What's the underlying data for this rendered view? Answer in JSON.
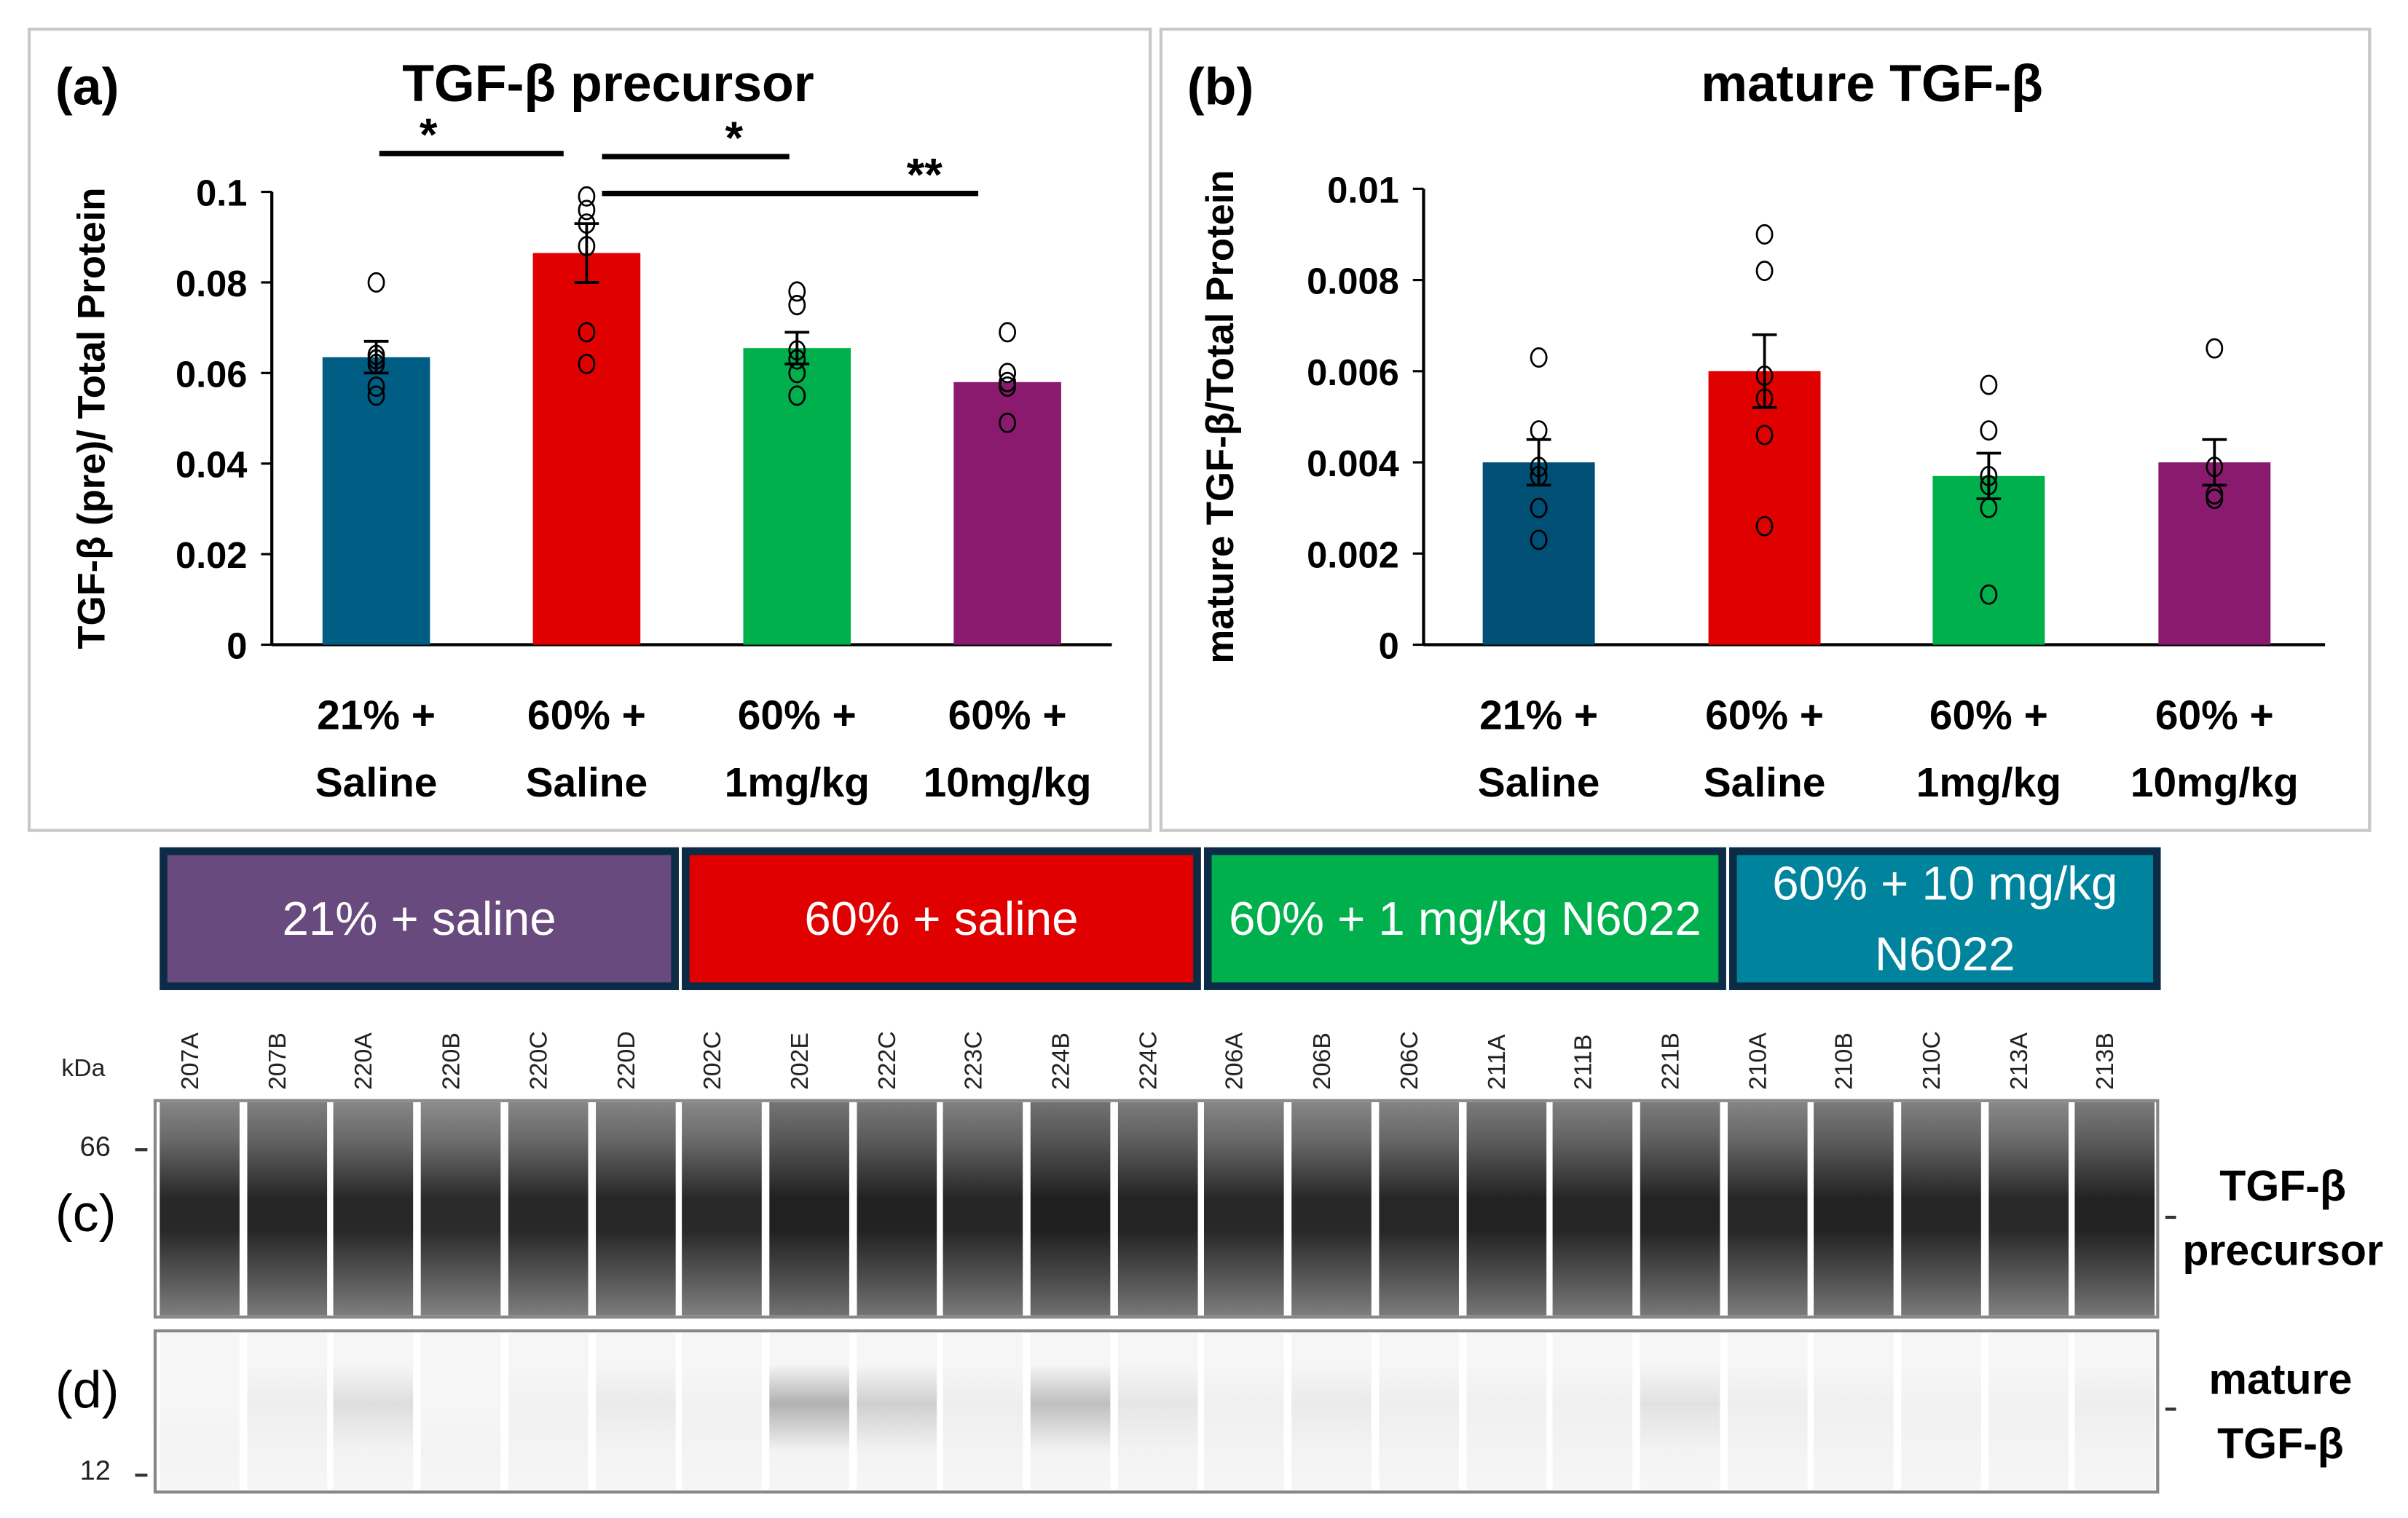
{
  "chart_data": [
    {
      "type": "bar",
      "panel_label": "(a)",
      "title": "TGF-β precursor",
      "ylabel": "TGF-β (pre)/ Total Protein",
      "xlabel": "",
      "categories": [
        [
          "21% +",
          "Saline"
        ],
        [
          "60% +",
          "Saline"
        ],
        [
          "60% +",
          "1mg/kg"
        ],
        [
          "60% +",
          "10mg/kg"
        ]
      ],
      "ylim": [
        0,
        0.1
      ],
      "yticks": [
        "0",
        "0.02",
        "0.04",
        "0.06",
        "0.08",
        "0.1"
      ],
      "ytick_values": [
        0,
        0.02,
        0.04,
        0.06,
        0.08,
        0.1
      ],
      "values": [
        0.0635,
        0.0865,
        0.0655,
        0.058
      ],
      "error_upper": [
        0.0035,
        0.0065,
        0.0035,
        0.0
      ],
      "error_lower": [
        0.0035,
        0.0065,
        0.0035,
        0.0
      ],
      "points": [
        [
          0.08,
          0.064,
          0.063,
          0.062,
          0.057,
          0.055
        ],
        [
          0.099,
          0.096,
          0.093,
          0.088,
          0.069,
          0.062
        ],
        [
          0.078,
          0.075,
          0.065,
          0.063,
          0.06,
          0.055
        ],
        [
          0.069,
          0.06,
          0.058,
          0.057,
          0.049
        ]
      ],
      "colors": [
        "#005d84",
        "#e00000",
        "#00b04c",
        "#8a1a6e"
      ],
      "significance": [
        {
          "from": 0,
          "to": 1,
          "label": "*"
        },
        {
          "from": 1,
          "to": 2,
          "label": "*"
        },
        {
          "from": 1,
          "to": 3,
          "label": "**"
        }
      ],
      "grid": false
    },
    {
      "type": "bar",
      "panel_label": "(b)",
      "title": "mature TGF-β",
      "ylabel": "mature TGF-β/Total Protein",
      "xlabel": "",
      "categories": [
        [
          "21% +",
          "Saline"
        ],
        [
          "60% +",
          "Saline"
        ],
        [
          "60% +",
          "1mg/kg"
        ],
        [
          "60% +",
          "10mg/kg"
        ]
      ],
      "ylim": [
        0,
        0.01
      ],
      "yticks": [
        "0",
        "0.002",
        "0.004",
        "0.006",
        "0.008",
        "0.01"
      ],
      "ytick_values": [
        0,
        0.002,
        0.004,
        0.006,
        0.008,
        0.01
      ],
      "values": [
        0.004,
        0.006,
        0.0037,
        0.004
      ],
      "error_upper": [
        0.0005,
        0.0008,
        0.0005,
        0.0005
      ],
      "error_lower": [
        0.0005,
        0.0008,
        0.0005,
        0.0005
      ],
      "points": [
        [
          0.0063,
          0.0047,
          0.0039,
          0.0037,
          0.003,
          0.0023
        ],
        [
          0.009,
          0.0082,
          0.0059,
          0.0054,
          0.0046,
          0.0026
        ],
        [
          0.0057,
          0.0047,
          0.0037,
          0.0035,
          0.003,
          0.0011
        ],
        [
          0.0065,
          0.0039,
          0.0033,
          0.0032
        ]
      ],
      "colors": [
        "#004f74",
        "#e00000",
        "#00b04c",
        "#8a1a6e"
      ],
      "significance": [],
      "grid": false
    }
  ],
  "blot": {
    "groups": [
      {
        "label": "21% + saline",
        "color": "#694a7e"
      },
      {
        "label": "60% + saline",
        "color": "#e00000"
      },
      {
        "label": "60% + 1 mg/kg N6022",
        "color": "#00b04c"
      },
      {
        "label": "60% + 10 mg/kg N6022",
        "color": "#00849e"
      }
    ],
    "lanes": [
      "207A",
      "207B",
      "220A",
      "220B",
      "220C",
      "220D",
      "202C",
      "202E",
      "222C",
      "223C",
      "224B",
      "224C",
      "206A",
      "206B",
      "206C",
      "211A",
      "211B",
      "221B",
      "210A",
      "210B",
      "210C",
      "213A",
      "213B"
    ],
    "kda_label": "kDa",
    "markers": {
      "upper": "66",
      "lower": "12"
    },
    "panel_c": {
      "label": "(c)",
      "band": "TGF-β precursor"
    },
    "panel_d": {
      "label": "(d)",
      "band": "mature TGF-β"
    }
  }
}
